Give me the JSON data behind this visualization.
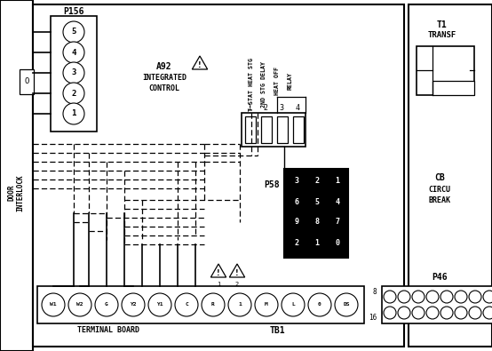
{
  "bg_color": "#ffffff",
  "line_color": "#000000",
  "fig_width": 5.54,
  "fig_height": 3.95,
  "dpi": 100,
  "p156_label": "P156",
  "p156_pins": [
    "5",
    "4",
    "3",
    "2",
    "1"
  ],
  "a92_lines": [
    "A92",
    "INTEGRATED",
    "CONTROL"
  ],
  "connector4_pin_labels": [
    "1",
    "2",
    "3",
    "4"
  ],
  "p58_label": "P58",
  "p58_rows": [
    [
      "3",
      "2",
      "1"
    ],
    [
      "6",
      "5",
      "4"
    ],
    [
      "9",
      "8",
      "7"
    ],
    [
      "2",
      "1",
      "0"
    ]
  ],
  "terminal_pins": [
    "W1",
    "W2",
    "G",
    "Y2",
    "Y1",
    "C",
    "R",
    "1",
    "M",
    "L",
    "0",
    "DS"
  ],
  "terminal_board_label": "TERMINAL BOARD",
  "tb1_label": "TB1",
  "p46_label": "P46",
  "t1_lines": [
    "T1",
    "TRANSF"
  ],
  "cb_lines": [
    "CB",
    "CIRCU",
    "BREAK"
  ]
}
